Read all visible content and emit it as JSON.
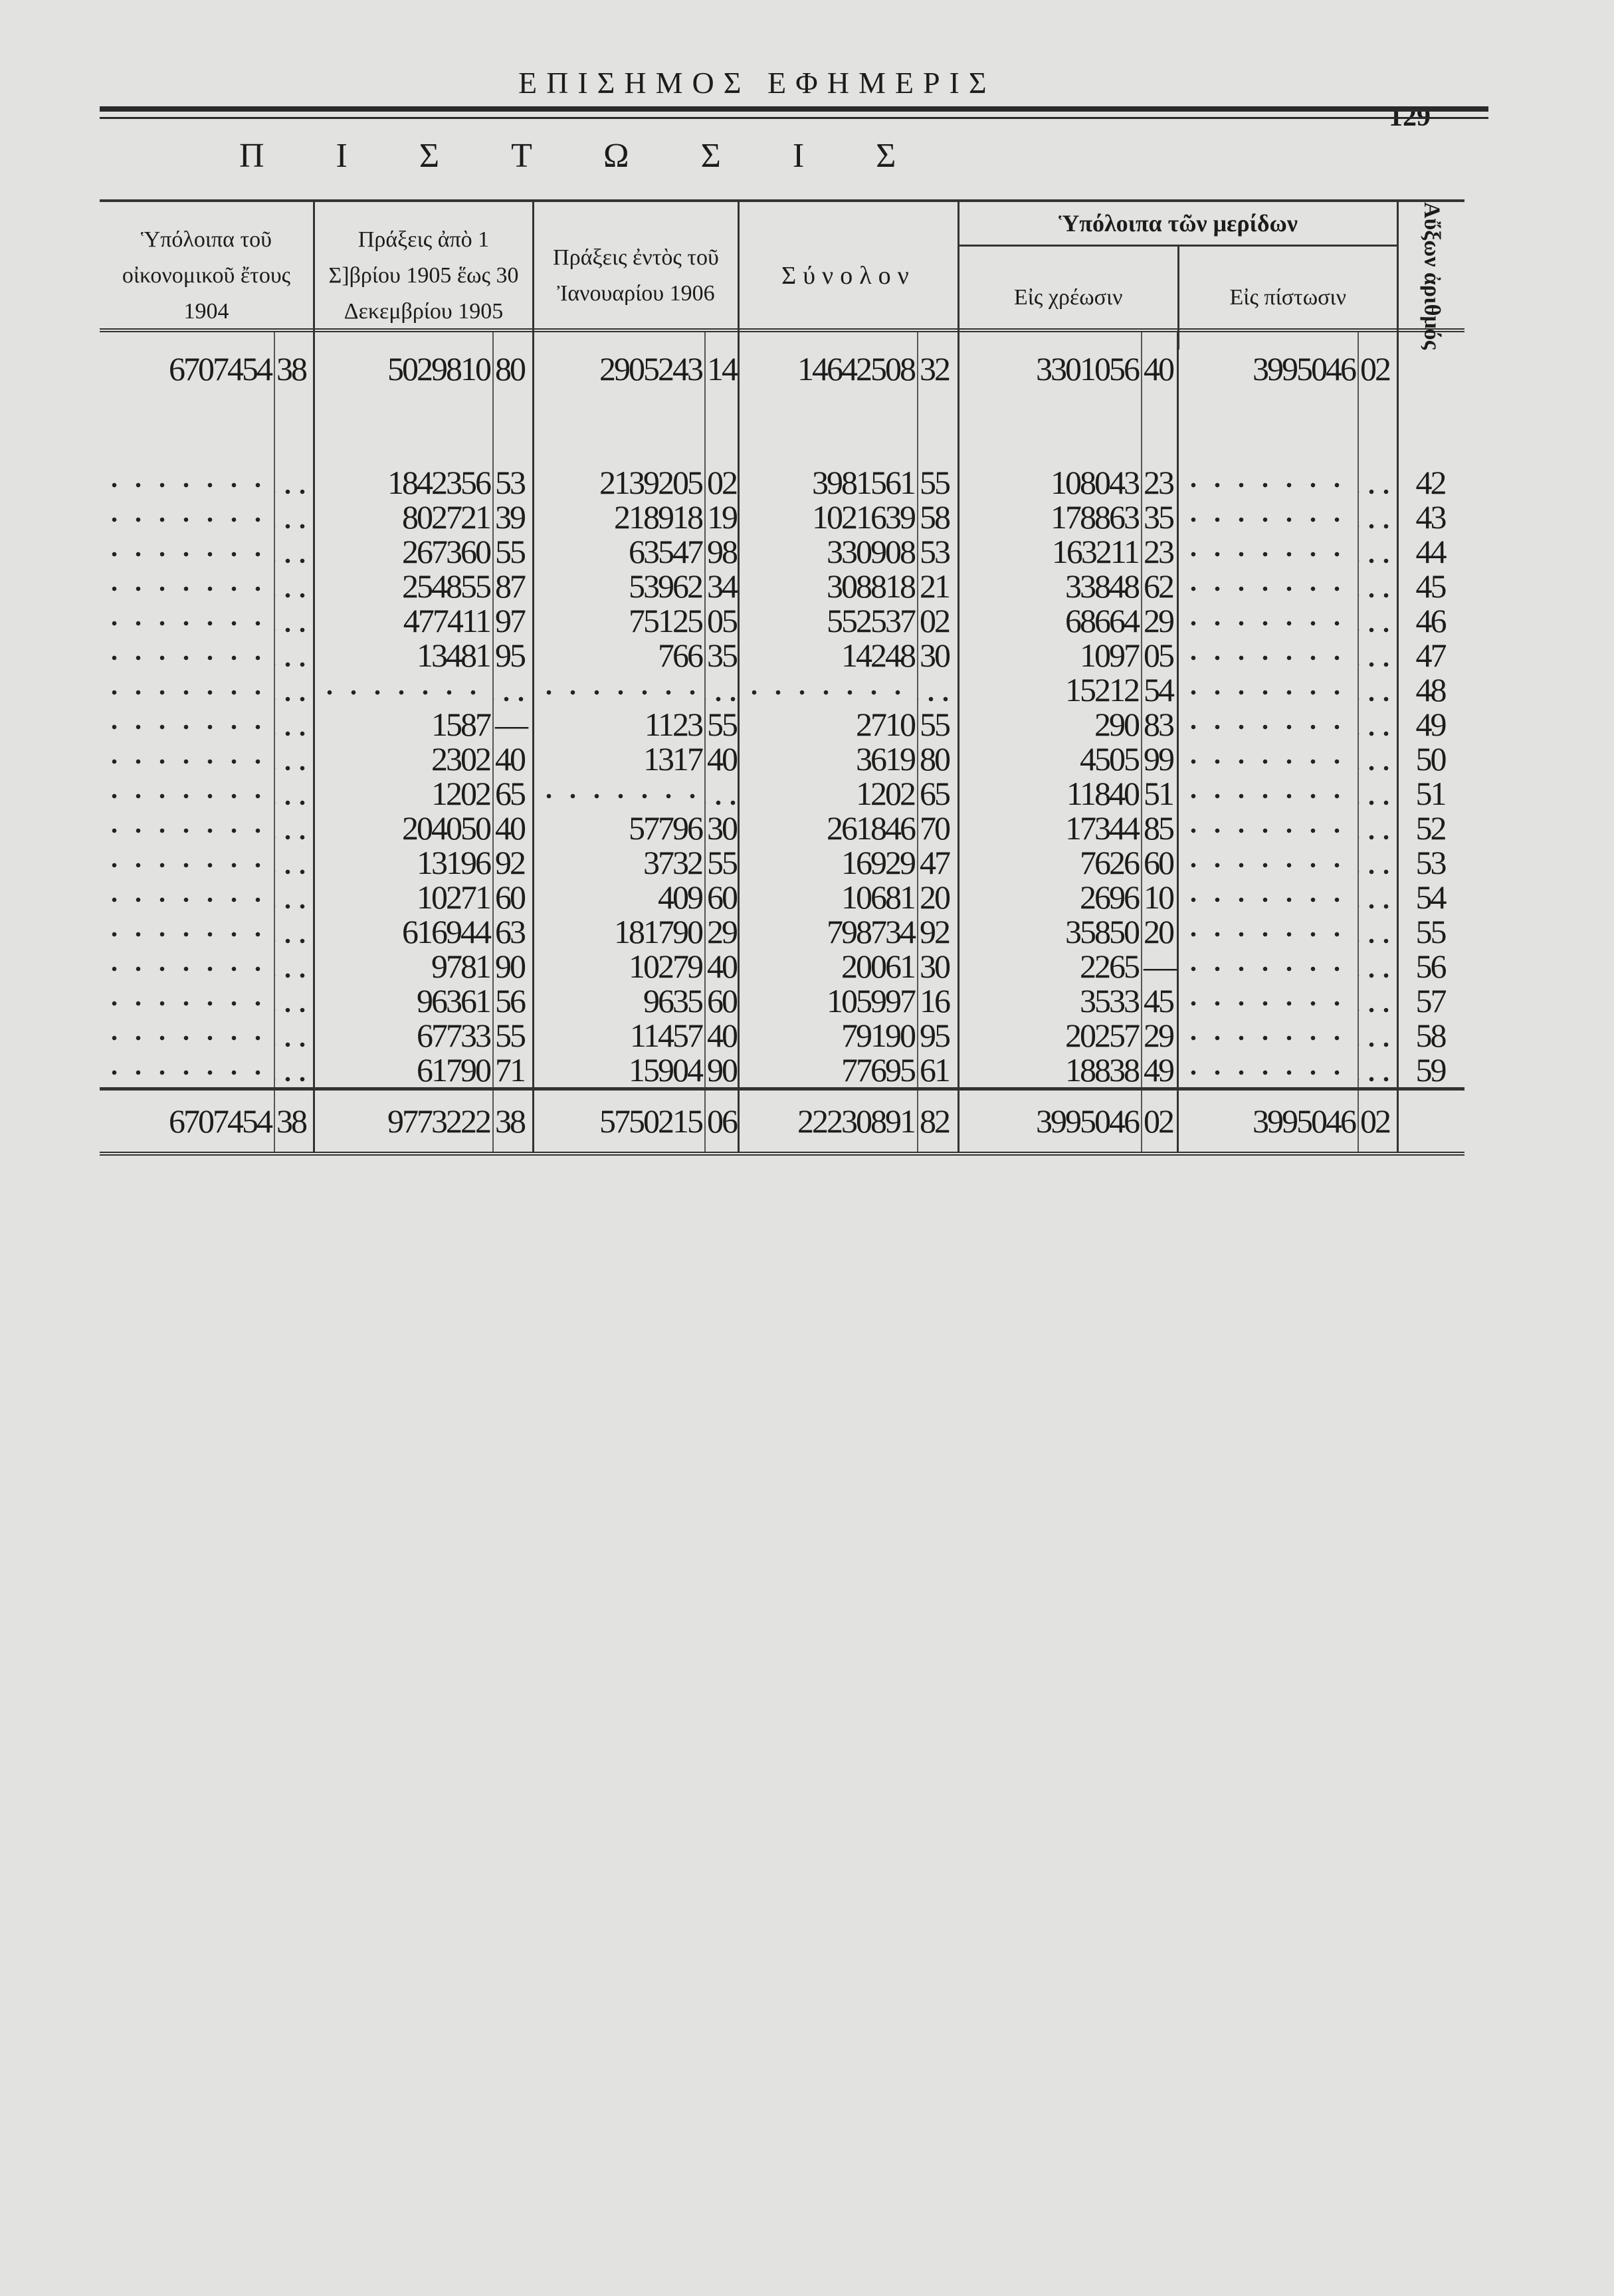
{
  "header": {
    "masthead": "ΕΠΙΣΗΜΟΣ ΕΦΗΜΕΡΙΣ",
    "page_number": "129",
    "section_title": "ΠΙΣΤΩΣΙΣ"
  },
  "columns": {
    "c1": "Ὑπόλοιπα τοῦ οἰκονομικοῦ ἔτους 1904",
    "c2": "Πράξεις ἀπὸ 1 Σ]βρίου 1905 ἕως 30 Δεκεμβρίου 1905",
    "c3": "Πράξεις ἐντὸς τοῦ Ἰανουαρίου 1906",
    "c4": "Σύνολον",
    "group": "Ὑπόλοιπα τῶν μερίδων",
    "c5": "Εἰς χρέωσιν",
    "c6": "Εἰς πίστωσιν",
    "c7": "Αὔξων ἀριθμός"
  },
  "opening_row": [
    [
      "6707454",
      "38"
    ],
    [
      "5029810",
      "80"
    ],
    [
      "2905243",
      "14"
    ],
    [
      "14642508",
      "32"
    ],
    [
      "3301056",
      "40"
    ],
    [
      "3995046",
      "02"
    ]
  ],
  "rows": [
    {
      "num": "42",
      "cols": [
        [
          "",
          ""
        ],
        [
          "1842356",
          "53"
        ],
        [
          "2139205",
          "02"
        ],
        [
          "3981561",
          "55"
        ],
        [
          "108043",
          "23"
        ],
        [
          "",
          ""
        ]
      ]
    },
    {
      "num": "43",
      "cols": [
        [
          "",
          ""
        ],
        [
          "802721",
          "39"
        ],
        [
          "218918",
          "19"
        ],
        [
          "1021639",
          "58"
        ],
        [
          "178863",
          "35"
        ],
        [
          "",
          ""
        ]
      ]
    },
    {
      "num": "44",
      "cols": [
        [
          "",
          ""
        ],
        [
          "267360",
          "55"
        ],
        [
          "63547",
          "98"
        ],
        [
          "330908",
          "53"
        ],
        [
          "163211",
          "23"
        ],
        [
          "",
          ""
        ]
      ]
    },
    {
      "num": "45",
      "cols": [
        [
          "",
          ""
        ],
        [
          "254855",
          "87"
        ],
        [
          "53962",
          "34"
        ],
        [
          "308818",
          "21"
        ],
        [
          "33848",
          "62"
        ],
        [
          "",
          ""
        ]
      ]
    },
    {
      "num": "46",
      "cols": [
        [
          "",
          ""
        ],
        [
          "477411",
          "97"
        ],
        [
          "75125",
          "05"
        ],
        [
          "552537",
          "02"
        ],
        [
          "68664",
          "29"
        ],
        [
          "",
          ""
        ]
      ]
    },
    {
      "num": "47",
      "cols": [
        [
          "",
          ""
        ],
        [
          "13481",
          "95"
        ],
        [
          "766",
          "35"
        ],
        [
          "14248",
          "30"
        ],
        [
          "1097",
          "05"
        ],
        [
          "",
          ""
        ]
      ]
    },
    {
      "num": "48",
      "cols": [
        [
          "",
          ""
        ],
        [
          "",
          ""
        ],
        [
          "",
          ""
        ],
        [
          "",
          ""
        ],
        [
          "15212",
          "54"
        ],
        [
          "",
          ""
        ]
      ]
    },
    {
      "num": "49",
      "cols": [
        [
          "",
          ""
        ],
        [
          "1587",
          "—"
        ],
        [
          "1123",
          "55"
        ],
        [
          "2710",
          "55"
        ],
        [
          "290",
          "83"
        ],
        [
          "",
          ""
        ]
      ]
    },
    {
      "num": "50",
      "cols": [
        [
          "",
          ""
        ],
        [
          "2302",
          "40"
        ],
        [
          "1317",
          "40"
        ],
        [
          "3619",
          "80"
        ],
        [
          "4505",
          "99"
        ],
        [
          "",
          ""
        ]
      ]
    },
    {
      "num": "51",
      "cols": [
        [
          "",
          ""
        ],
        [
          "1202",
          "65"
        ],
        [
          "",
          ""
        ],
        [
          "1202",
          "65"
        ],
        [
          "11840",
          "51"
        ],
        [
          "",
          ""
        ]
      ]
    },
    {
      "num": "52",
      "cols": [
        [
          "",
          ""
        ],
        [
          "204050",
          "40"
        ],
        [
          "57796",
          "30"
        ],
        [
          "261846",
          "70"
        ],
        [
          "17344",
          "85"
        ],
        [
          "",
          ""
        ]
      ]
    },
    {
      "num": "53",
      "cols": [
        [
          "",
          ""
        ],
        [
          "13196",
          "92"
        ],
        [
          "3732",
          "55"
        ],
        [
          "16929",
          "47"
        ],
        [
          "7626",
          "60"
        ],
        [
          "",
          ""
        ]
      ]
    },
    {
      "num": "54",
      "cols": [
        [
          "",
          ""
        ],
        [
          "10271",
          "60"
        ],
        [
          "409",
          "60"
        ],
        [
          "10681",
          "20"
        ],
        [
          "2696",
          "10"
        ],
        [
          "",
          ""
        ]
      ]
    },
    {
      "num": "55",
      "cols": [
        [
          "",
          ""
        ],
        [
          "616944",
          "63"
        ],
        [
          "181790",
          "29"
        ],
        [
          "798734",
          "92"
        ],
        [
          "35850",
          "20"
        ],
        [
          "",
          ""
        ]
      ]
    },
    {
      "num": "56",
      "cols": [
        [
          "",
          ""
        ],
        [
          "9781",
          "90"
        ],
        [
          "10279",
          "40"
        ],
        [
          "20061",
          "30"
        ],
        [
          "2265",
          "—"
        ],
        [
          "",
          ""
        ]
      ]
    },
    {
      "num": "57",
      "cols": [
        [
          "",
          ""
        ],
        [
          "96361",
          "56"
        ],
        [
          "9635",
          "60"
        ],
        [
          "105997",
          "16"
        ],
        [
          "3533",
          "45"
        ],
        [
          "",
          ""
        ]
      ]
    },
    {
      "num": "58",
      "cols": [
        [
          "",
          ""
        ],
        [
          "67733",
          "55"
        ],
        [
          "11457",
          "40"
        ],
        [
          "79190",
          "95"
        ],
        [
          "20257",
          "29"
        ],
        [
          "",
          ""
        ]
      ]
    },
    {
      "num": "59",
      "cols": [
        [
          "",
          ""
        ],
        [
          "61790",
          "71"
        ],
        [
          "15904",
          "90"
        ],
        [
          "77695",
          "61"
        ],
        [
          "18838",
          "49"
        ],
        [
          "",
          ""
        ]
      ]
    }
  ],
  "totals": [
    [
      "6707454",
      "38"
    ],
    [
      "9773222",
      "38"
    ],
    [
      "5750215",
      "06"
    ],
    [
      "22230891",
      "82"
    ],
    [
      "3995046",
      "02"
    ],
    [
      "3995046",
      "02"
    ]
  ]
}
